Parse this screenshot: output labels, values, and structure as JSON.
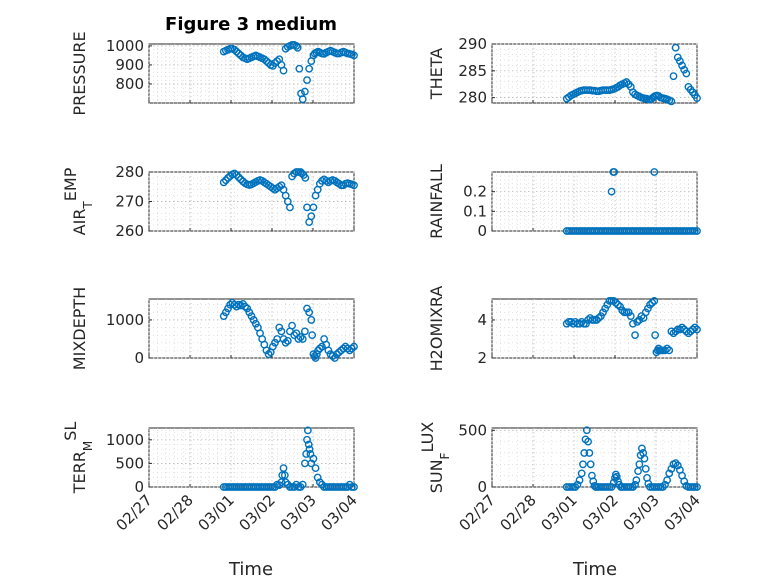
{
  "title": "Figure 3 medium",
  "xlabel": "Time",
  "colors": {
    "marker": "#0072BD",
    "axes": "#262626",
    "grid": "#b0b0b0"
  },
  "chart_data": [
    {
      "type": "scatter",
      "ylabel": "PRESSURE",
      "ylabel_sub": "",
      "ylabel_tail": "",
      "title": "Figure 3 medium",
      "ylim": [
        700,
        1010
      ],
      "yticks": [
        800,
        900,
        1000
      ],
      "yticklabels": [
        "800",
        "900",
        "1000"
      ],
      "x": [
        0.95,
        1.0,
        1.05,
        1.1,
        1.15,
        1.2,
        1.25,
        1.3,
        1.35,
        1.4,
        1.45,
        1.5,
        1.55,
        1.6,
        1.65,
        1.7,
        1.75,
        1.8,
        1.85,
        1.9,
        1.95,
        2.0,
        2.05,
        2.1,
        2.15,
        2.2,
        2.25,
        2.3,
        2.35,
        2.4,
        2.45,
        2.5,
        2.55,
        2.6,
        2.65,
        2.68,
        2.72,
        2.76,
        2.8,
        2.85,
        2.9,
        2.95,
        3.0,
        3.05,
        3.08,
        3.12,
        3.16,
        3.2,
        3.25,
        3.3,
        3.35,
        3.4,
        3.45,
        3.5,
        3.55,
        3.6,
        3.65,
        3.7,
        3.75,
        3.8,
        3.85,
        3.9,
        3.95,
        4.0
      ],
      "y": [
        970,
        975,
        980,
        985,
        985,
        980,
        970,
        960,
        950,
        940,
        935,
        930,
        935,
        940,
        945,
        950,
        945,
        940,
        935,
        930,
        920,
        910,
        900,
        895,
        910,
        920,
        930,
        900,
        870,
        985,
        995,
        1000,
        1005,
        1005,
        1000,
        990,
        880,
        750,
        720,
        760,
        820,
        880,
        920,
        950,
        960,
        965,
        970,
        965,
        960,
        958,
        965,
        970,
        975,
        970,
        965,
        960,
        960,
        965,
        970,
        965,
        960,
        958,
        955,
        950
      ]
    },
    {
      "type": "scatter",
      "ylabel": "THETA",
      "ylabel_sub": "",
      "ylabel_tail": "",
      "ylim": [
        279,
        290
      ],
      "yticks": [
        280,
        285,
        290
      ],
      "yticklabels": [
        "280",
        "285",
        "290"
      ],
      "x": [
        0.95,
        1.0,
        1.05,
        1.1,
        1.15,
        1.2,
        1.25,
        1.3,
        1.35,
        1.4,
        1.45,
        1.5,
        1.55,
        1.6,
        1.65,
        1.7,
        1.75,
        1.8,
        1.85,
        1.9,
        1.95,
        2.0,
        2.05,
        2.1,
        2.15,
        2.2,
        2.25,
        2.3,
        2.35,
        2.4,
        2.45,
        2.5,
        2.55,
        2.6,
        2.65,
        2.7,
        2.75,
        2.78,
        2.82,
        2.86,
        2.9,
        2.94,
        2.98,
        3.02,
        3.06,
        3.1,
        3.15,
        3.2,
        3.25,
        3.3,
        3.35,
        3.4,
        3.45,
        3.5,
        3.55,
        3.6,
        3.65,
        3.7,
        3.75,
        3.8,
        3.85,
        3.9,
        3.95,
        4.0
      ],
      "y": [
        279.8,
        280.1,
        280.4,
        280.6,
        280.8,
        281.0,
        281.2,
        281.3,
        281.4,
        281.4,
        281.4,
        281.4,
        281.3,
        281.3,
        281.2,
        281.2,
        281.3,
        281.4,
        281.4,
        281.4,
        281.4,
        281.5,
        281.6,
        281.8,
        282.0,
        282.3,
        282.5,
        282.7,
        282.9,
        282.5,
        282.0,
        281.0,
        280.6,
        280.4,
        280.2,
        280.0,
        279.9,
        279.8,
        279.8,
        279.7,
        279.6,
        279.8,
        280.1,
        280.3,
        280.4,
        280.3,
        280.0,
        279.9,
        279.8,
        279.7,
        279.5,
        279.3,
        284.0,
        289.3,
        287.5,
        286.8,
        286.0,
        285.2,
        284.5,
        282.0,
        281.5,
        281.0,
        280.5,
        279.9
      ]
    },
    {
      "type": "scatter",
      "ylabel": "AIR",
      "ylabel_sub": "T",
      "ylabel_tail": "EMP",
      "ylim": [
        260,
        280
      ],
      "yticks": [
        260,
        270,
        280
      ],
      "yticklabels": [
        "260",
        "270",
        "280"
      ],
      "x": [
        0.95,
        1.0,
        1.05,
        1.1,
        1.15,
        1.2,
        1.25,
        1.3,
        1.35,
        1.4,
        1.45,
        1.5,
        1.55,
        1.6,
        1.65,
        1.7,
        1.75,
        1.8,
        1.85,
        1.9,
        1.95,
        2.0,
        2.05,
        2.1,
        2.15,
        2.2,
        2.25,
        2.3,
        2.35,
        2.4,
        2.45,
        2.5,
        2.55,
        2.6,
        2.65,
        2.7,
        2.75,
        2.78,
        2.82,
        2.86,
        2.9,
        2.95,
        3.0,
        3.05,
        3.1,
        3.15,
        3.2,
        3.25,
        3.3,
        3.35,
        3.4,
        3.45,
        3.5,
        3.55,
        3.6,
        3.65,
        3.7,
        3.75,
        3.8,
        3.85,
        3.9,
        3.95,
        4.0
      ],
      "y": [
        276.5,
        277.2,
        278.0,
        278.6,
        279.2,
        279.5,
        279.0,
        278.2,
        277.5,
        276.8,
        276.2,
        275.8,
        275.6,
        275.8,
        276.2,
        276.6,
        277.0,
        277.3,
        277.0,
        276.5,
        276.0,
        275.5,
        275.0,
        274.5,
        274.0,
        274.5,
        275.0,
        275.5,
        274.0,
        272.0,
        270.0,
        268.0,
        278.5,
        279.5,
        280.0,
        280.0,
        280.0,
        279.5,
        279.0,
        278.0,
        268.0,
        263.0,
        265.0,
        268.0,
        272.0,
        274.0,
        276.0,
        277.0,
        277.5,
        277.0,
        276.5,
        277.0,
        277.3,
        277.0,
        276.5,
        276.0,
        275.5,
        275.5,
        276.0,
        276.2,
        276.0,
        275.8,
        275.5
      ]
    },
    {
      "type": "scatter",
      "ylabel": "RAINFALL",
      "ylabel_sub": "",
      "ylabel_tail": "",
      "ylim": [
        0,
        0.3
      ],
      "yticks": [
        0,
        0.1,
        0.2
      ],
      "yticklabels": [
        "0",
        "0.1",
        "0.2"
      ],
      "x": [
        0.95,
        1.0,
        1.05,
        1.1,
        1.15,
        1.2,
        1.25,
        1.3,
        1.35,
        1.4,
        1.45,
        1.5,
        1.55,
        1.6,
        1.65,
        1.7,
        1.75,
        1.8,
        1.85,
        1.9,
        1.95,
        2.0,
        2.05,
        2.1,
        2.15,
        2.2,
        2.25,
        2.3,
        2.35,
        2.4,
        2.45,
        2.5,
        2.55,
        2.6,
        2.65,
        2.7,
        2.75,
        2.8,
        2.85,
        2.9,
        2.95,
        3.0,
        3.05,
        3.1,
        3.15,
        3.2,
        3.25,
        3.3,
        3.35,
        3.4,
        3.45,
        3.5,
        3.55,
        3.6,
        3.65,
        3.7,
        3.75,
        3.8,
        3.85,
        3.9,
        3.95,
        4.0,
        2.0,
        2.04,
        2.06,
        3.0
      ],
      "y": [
        0,
        0,
        0,
        0,
        0,
        0,
        0,
        0,
        0,
        0,
        0,
        0,
        0,
        0,
        0,
        0,
        0,
        0,
        0,
        0,
        0,
        0,
        0,
        0,
        0,
        0,
        0,
        0,
        0,
        0,
        0,
        0,
        0,
        0,
        0,
        0,
        0,
        0,
        0,
        0,
        0,
        0,
        0,
        0,
        0,
        0,
        0,
        0,
        0,
        0,
        0,
        0,
        0,
        0,
        0,
        0,
        0,
        0,
        0,
        0,
        0,
        0,
        0.2,
        0.3,
        0.3,
        0.3
      ]
    },
    {
      "type": "scatter",
      "ylabel": "MIXDEPTH",
      "ylabel_sub": "",
      "ylabel_tail": "",
      "ylim": [
        0,
        1550
      ],
      "yticks": [
        0,
        1000
      ],
      "yticklabels": [
        "0",
        "1000"
      ],
      "x": [
        0.95,
        1.0,
        1.05,
        1.1,
        1.15,
        1.2,
        1.25,
        1.3,
        1.35,
        1.4,
        1.45,
        1.5,
        1.55,
        1.6,
        1.65,
        1.7,
        1.75,
        1.8,
        1.85,
        1.9,
        1.95,
        2.0,
        2.05,
        2.1,
        2.15,
        2.2,
        2.25,
        2.3,
        2.35,
        2.4,
        2.45,
        2.5,
        2.55,
        2.6,
        2.65,
        2.7,
        2.75,
        2.8,
        2.85,
        2.9,
        2.95,
        3.0,
        3.02,
        3.05,
        3.08,
        3.1,
        3.13,
        3.16,
        3.2,
        3.25,
        3.3,
        3.35,
        3.4,
        3.45,
        3.5,
        3.55,
        3.6,
        3.65,
        3.7,
        3.75,
        3.8,
        3.85,
        3.9,
        3.95,
        4.0
      ],
      "y": [
        1100,
        1200,
        1300,
        1400,
        1450,
        1400,
        1350,
        1400,
        1380,
        1420,
        1350,
        1300,
        1200,
        1100,
        1000,
        900,
        800,
        650,
        500,
        350,
        200,
        100,
        150,
        300,
        400,
        500,
        800,
        700,
        500,
        400,
        450,
        700,
        850,
        600,
        650,
        500,
        550,
        500,
        700,
        1300,
        1200,
        1000,
        600,
        100,
        50,
        0,
        100,
        200,
        250,
        300,
        500,
        350,
        200,
        100,
        50,
        0,
        100,
        150,
        200,
        250,
        300,
        250,
        200,
        250,
        300
      ]
    },
    {
      "type": "scatter",
      "ylabel": "H2OMIXRA",
      "ylabel_sub": "",
      "ylabel_tail": "",
      "ylim": [
        2,
        5.1
      ],
      "yticks": [
        2,
        4
      ],
      "yticklabels": [
        "2",
        "4"
      ],
      "x": [
        0.95,
        1.0,
        1.05,
        1.1,
        1.15,
        1.2,
        1.25,
        1.3,
        1.35,
        1.4,
        1.45,
        1.5,
        1.55,
        1.6,
        1.65,
        1.7,
        1.75,
        1.8,
        1.85,
        1.9,
        1.95,
        2.0,
        2.05,
        2.1,
        2.15,
        2.2,
        2.25,
        2.3,
        2.35,
        2.4,
        2.45,
        2.5,
        2.55,
        2.6,
        2.65,
        2.7,
        2.75,
        2.8,
        2.85,
        2.9,
        2.95,
        3.0,
        3.02,
        3.05,
        3.08,
        3.1,
        3.13,
        3.16,
        3.2,
        3.25,
        3.3,
        3.35,
        3.4,
        3.45,
        3.5,
        3.55,
        3.6,
        3.65,
        3.7,
        3.75,
        3.8,
        3.85,
        3.9,
        3.95,
        4.0
      ],
      "y": [
        3.8,
        3.9,
        3.9,
        3.8,
        3.9,
        3.8,
        3.8,
        3.9,
        3.8,
        3.8,
        4.0,
        4.1,
        4.0,
        4.0,
        4.0,
        4.1,
        4.2,
        4.4,
        4.6,
        4.8,
        5.0,
        5.0,
        5.0,
        4.9,
        4.8,
        4.7,
        4.5,
        4.4,
        4.4,
        4.4,
        4.2,
        3.8,
        3.2,
        3.9,
        4.0,
        4.2,
        4.1,
        4.4,
        4.6,
        4.8,
        4.9,
        5.0,
        3.2,
        2.3,
        2.4,
        2.5,
        2.4,
        2.4,
        2.4,
        2.4,
        2.5,
        2.4,
        3.4,
        3.3,
        3.4,
        3.5,
        3.5,
        3.6,
        3.5,
        3.4,
        3.3,
        3.4,
        3.5,
        3.6,
        3.5
      ]
    },
    {
      "type": "scatter",
      "ylabel": "TERR",
      "ylabel_sub": "M",
      "ylabel_tail": "SL",
      "ylim": [
        0,
        1250
      ],
      "yticks": [
        0,
        500,
        1000
      ],
      "yticklabels": [
        "0",
        "500",
        "1000"
      ],
      "x": [
        0.95,
        1.0,
        1.05,
        1.1,
        1.15,
        1.2,
        1.25,
        1.3,
        1.35,
        1.4,
        1.45,
        1.5,
        1.55,
        1.6,
        1.65,
        1.7,
        1.75,
        1.8,
        1.85,
        1.9,
        1.95,
        2.0,
        2.05,
        2.1,
        2.15,
        2.2,
        2.25,
        2.3,
        2.32,
        2.35,
        2.38,
        2.4,
        2.45,
        2.5,
        2.55,
        2.6,
        2.65,
        2.7,
        2.75,
        2.8,
        2.85,
        2.88,
        2.9,
        2.92,
        2.94,
        2.96,
        2.98,
        3.0,
        3.05,
        3.1,
        3.15,
        3.2,
        3.25,
        3.3,
        3.35,
        3.4,
        3.45,
        3.5,
        3.55,
        3.6,
        3.65,
        3.7,
        3.75,
        3.8,
        3.85,
        3.9,
        3.95,
        4.0
      ],
      "y": [
        0,
        0,
        0,
        0,
        0,
        0,
        0,
        0,
        0,
        0,
        0,
        0,
        0,
        0,
        0,
        0,
        0,
        0,
        0,
        0,
        0,
        0,
        0,
        0,
        0,
        50,
        40,
        100,
        250,
        400,
        250,
        100,
        50,
        0,
        0,
        0,
        50,
        0,
        0,
        50,
        500,
        700,
        1000,
        1200,
        900,
        800,
        700,
        500,
        600,
        400,
        200,
        100,
        50,
        0,
        0,
        0,
        0,
        0,
        0,
        0,
        0,
        0,
        0,
        0,
        0,
        50,
        0,
        0
      ]
    },
    {
      "type": "scatter",
      "ylabel": "SUN",
      "ylabel_sub": "F",
      "ylabel_tail": "LUX",
      "ylim": [
        0,
        520
      ],
      "yticks": [
        0,
        500
      ],
      "yticklabels": [
        "0",
        "500"
      ],
      "x": [
        0.95,
        1.0,
        1.05,
        1.1,
        1.15,
        1.2,
        1.25,
        1.3,
        1.33,
        1.36,
        1.39,
        1.42,
        1.45,
        1.48,
        1.51,
        1.54,
        1.57,
        1.6,
        1.63,
        1.66,
        1.7,
        1.75,
        1.8,
        1.85,
        1.9,
        1.95,
        2.0,
        2.05,
        2.08,
        2.1,
        2.12,
        2.15,
        2.18,
        2.22,
        2.25,
        2.3,
        2.35,
        2.4,
        2.45,
        2.5,
        2.55,
        2.58,
        2.62,
        2.65,
        2.68,
        2.71,
        2.74,
        2.77,
        2.8,
        2.83,
        2.86,
        2.9,
        2.95,
        3.0,
        3.05,
        3.1,
        3.15,
        3.2,
        3.25,
        3.3,
        3.35,
        3.4,
        3.45,
        3.5,
        3.55,
        3.6,
        3.65,
        3.7,
        3.75,
        3.8,
        3.85,
        3.9,
        3.95,
        4.0
      ],
      "y": [
        0,
        0,
        0,
        0,
        0,
        20,
        60,
        120,
        200,
        300,
        420,
        500,
        400,
        300,
        200,
        100,
        50,
        10,
        0,
        0,
        0,
        0,
        0,
        0,
        0,
        0,
        0,
        40,
        80,
        110,
        90,
        50,
        20,
        0,
        0,
        0,
        0,
        0,
        0,
        0,
        20,
        60,
        140,
        200,
        280,
        340,
        300,
        250,
        160,
        80,
        30,
        0,
        0,
        0,
        0,
        0,
        0,
        0,
        20,
        60,
        120,
        160,
        200,
        210,
        190,
        150,
        100,
        50,
        10,
        0,
        0,
        0,
        0,
        0
      ]
    }
  ],
  "xaxis": {
    "xlim": [
      0,
      4
    ],
    "ticks": [
      0,
      1,
      2,
      3,
      4
    ],
    "ticklabels": [
      "02/27",
      "02/28",
      "03/01",
      "03/02",
      "03/03",
      "03/04"
    ],
    "tickpos": [
      0,
      0.8,
      1.6,
      2.4,
      3.2,
      4.0
    ]
  }
}
